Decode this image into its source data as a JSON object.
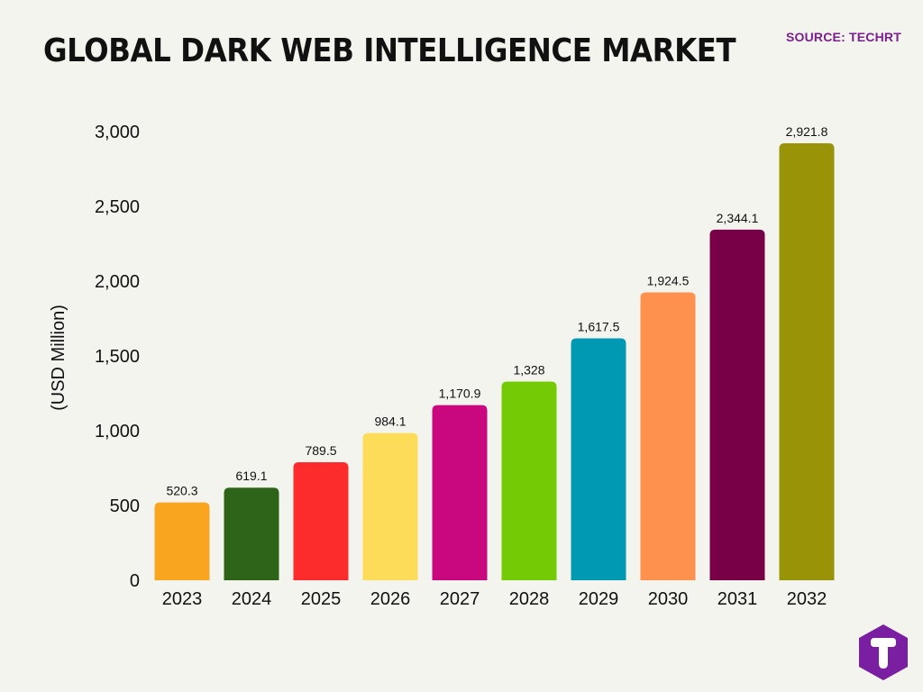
{
  "header": {
    "title": "GLOBAL DARK WEB INTELLIGENCE MARKET",
    "source": "SOURCE: TECHRT"
  },
  "chart_data": {
    "type": "bar",
    "title": "GLOBAL DARK WEB INTELLIGENCE MARKET",
    "xlabel": "",
    "ylabel": "(USD Million)",
    "ylim": [
      0,
      3000
    ],
    "yticks": [
      0,
      500,
      1000,
      1500,
      2000,
      2500,
      3000
    ],
    "ytick_labels": [
      "0",
      "500",
      "1,000",
      "1,500",
      "2,000",
      "2,500",
      "3,000"
    ],
    "categories": [
      "2023",
      "2024",
      "2025",
      "2026",
      "2027",
      "2028",
      "2029",
      "2030",
      "2031",
      "2032"
    ],
    "values": [
      520.3,
      619.1,
      789.5,
      984.1,
      1170.9,
      1328,
      1617.5,
      1924.5,
      2344.1,
      2921.8
    ],
    "value_labels": [
      "520.3",
      "619.1",
      "789.5",
      "984.1",
      "1,170.9",
      "1,328",
      "1,617.5",
      "1,924.5",
      "2,344.1",
      "2,921.8"
    ],
    "colors": [
      "#f9a51f",
      "#2e6419",
      "#fd2c2c",
      "#fddc5a",
      "#c9087f",
      "#74cb05",
      "#0099b4",
      "#fe914d",
      "#780047",
      "#989307"
    ],
    "grid": false,
    "legend": "none"
  },
  "logo": {
    "color": "#7a1fa2",
    "icon": "techrt-t-logo"
  }
}
